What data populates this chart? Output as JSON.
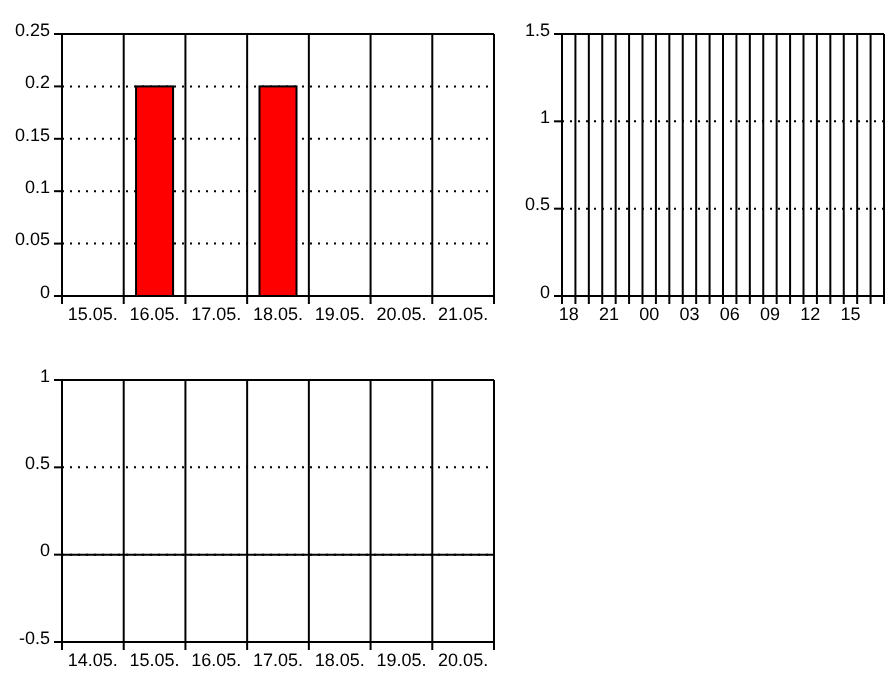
{
  "chart_data": [
    {
      "type": "bar",
      "categories": [
        "15.05.",
        "16.05.",
        "17.05.",
        "18.05.",
        "19.05.",
        "20.05.",
        "21.05."
      ],
      "values": [
        0,
        0.2,
        0,
        0.2,
        0,
        0,
        0
      ],
      "color": "#ff0000",
      "ylim": [
        0,
        0.25
      ],
      "yticks": [
        0,
        0.05,
        0.1,
        0.15,
        0.2,
        0.25
      ],
      "grid": "y"
    },
    {
      "type": "bar",
      "categories": [
        "18",
        null,
        null,
        "21",
        null,
        null,
        "00",
        null,
        null,
        "03",
        null,
        null,
        "06",
        null,
        null,
        "09",
        null,
        null,
        "12",
        null,
        null,
        "15",
        null,
        null
      ],
      "values": [
        0,
        0,
        0,
        0,
        0,
        0,
        0,
        0,
        0,
        0,
        0,
        0,
        0,
        0,
        0,
        0,
        0,
        0,
        0,
        0,
        0,
        0,
        0,
        0
      ],
      "color": "#ff0000",
      "ylim": [
        0,
        1.5
      ],
      "yticks": [
        0,
        0.5,
        1,
        1.5
      ],
      "grid": "y"
    },
    {
      "type": "bar",
      "categories": [
        "14.05.",
        "15.05.",
        "16.05.",
        "17.05.",
        "18.05.",
        "19.05.",
        "20.05."
      ],
      "values": [
        0,
        0,
        0,
        0,
        0,
        0,
        0
      ],
      "color": "#ff0000",
      "ylim": [
        -0.5,
        1
      ],
      "yticks": [
        -0.5,
        0,
        0.5,
        1
      ],
      "grid": "y"
    }
  ]
}
